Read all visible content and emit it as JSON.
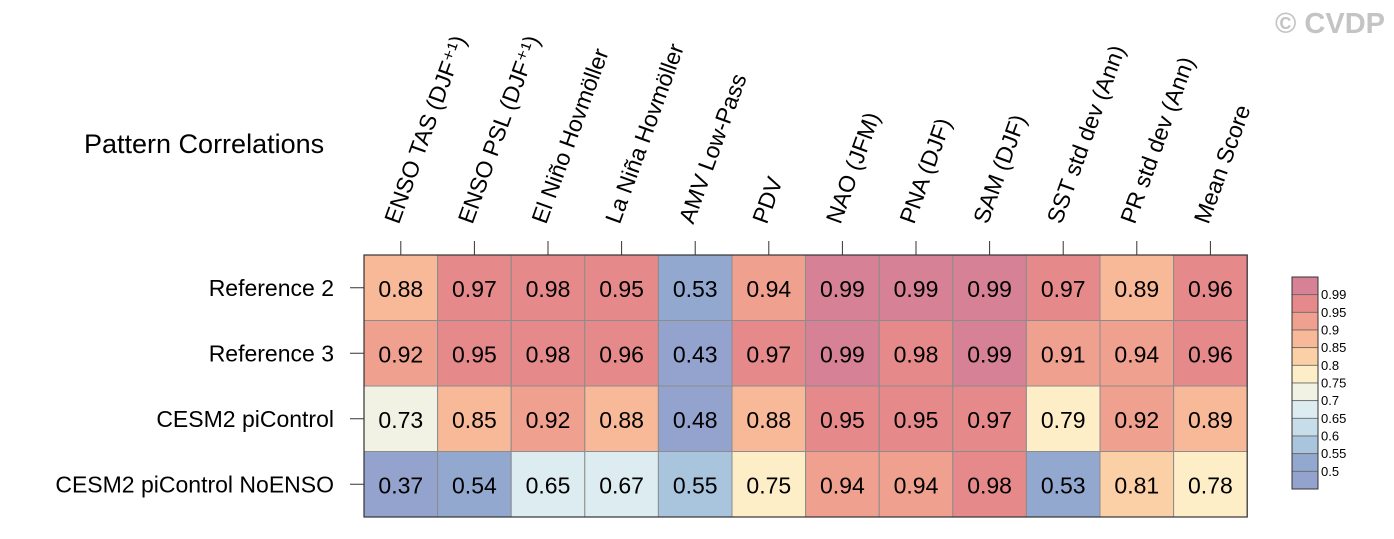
{
  "title": "Pattern Correlations",
  "watermark": "© CVDP",
  "chart_data": {
    "type": "heatmap",
    "title": "Pattern Correlations",
    "columns": [
      "ENSO TAS (DJF⁺¹)",
      "ENSO PSL (DJF⁺¹)",
      "El Niño Hovmöller",
      "La Niña Hovmöller",
      "AMV Low-Pass",
      "PDV",
      "NAO (JFM)",
      "PNA (DJF)",
      "SAM (DJF)",
      "SST std dev (Ann)",
      "PR std dev (Ann)",
      "Mean Score"
    ],
    "rows": [
      "Reference 2",
      "Reference 3",
      "CESM2 piControl",
      "CESM2 piControl NoENSO"
    ],
    "values": [
      [
        0.88,
        0.97,
        0.98,
        0.95,
        0.53,
        0.94,
        0.99,
        0.99,
        0.99,
        0.97,
        0.89,
        0.96
      ],
      [
        0.92,
        0.95,
        0.98,
        0.96,
        0.43,
        0.97,
        0.99,
        0.98,
        0.99,
        0.91,
        0.94,
        0.96
      ],
      [
        0.73,
        0.85,
        0.92,
        0.88,
        0.48,
        0.88,
        0.95,
        0.95,
        0.97,
        0.79,
        0.92,
        0.89
      ],
      [
        0.37,
        0.54,
        0.65,
        0.67,
        0.55,
        0.75,
        0.94,
        0.94,
        0.98,
        0.53,
        0.81,
        0.78
      ]
    ],
    "colorbar": {
      "levels": [
        0.99,
        0.95,
        0.9,
        0.85,
        0.8,
        0.75,
        0.7,
        0.65,
        0.6,
        0.55,
        0.5
      ],
      "colors": [
        "#d68195",
        "#e6898b",
        "#efa08e",
        "#f7b998",
        "#fbd0a6",
        "#fdeec8",
        "#f1f1e4",
        "#dcecf1",
        "#c7dde9",
        "#a9c4dd",
        "#93a8cf",
        "#94a3cd"
      ]
    }
  }
}
